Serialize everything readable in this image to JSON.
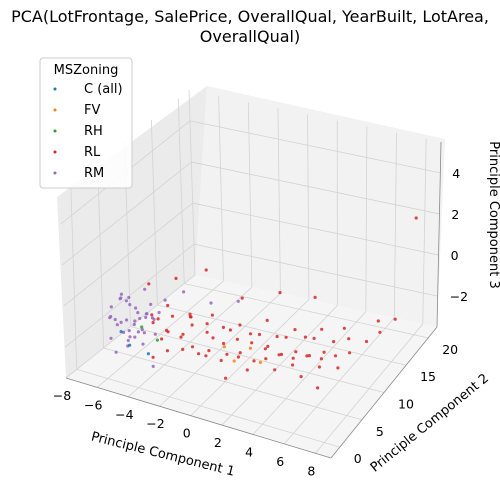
{
  "chart_data": {
    "type": "scatter",
    "projection": "3d",
    "title_lines": [
      "PCA(LotFrontage, SalePrice, OverallQual, YearBuilt, LotArea,",
      "OverallQual)"
    ],
    "xlabel": "Principle Component 1",
    "ylabel": "Principle Component 2",
    "zlabel": "Principle Component 3",
    "xlim": [
      -8,
      9
    ],
    "ylim": [
      -2,
      22
    ],
    "zlim": [
      -3.5,
      5.5
    ],
    "xticks": [
      -8,
      -6,
      -4,
      -2,
      0,
      2,
      4,
      6,
      8
    ],
    "yticks": [
      0,
      5,
      10,
      15,
      20
    ],
    "zticks": [
      -2,
      0,
      2,
      4
    ],
    "grid": true,
    "legend": {
      "title": "MSZoning",
      "placement": "top-left",
      "entries": [
        "C (all)",
        "FV",
        "RH",
        "RL",
        "RM"
      ]
    },
    "series": [
      {
        "name": "RM",
        "color": "#9467bd",
        "points": [
          [
            -5.8,
            2.2,
            -1.2
          ],
          [
            -5.2,
            1.5,
            -0.8
          ],
          [
            -4.9,
            2.8,
            -1.6
          ],
          [
            -5.5,
            0.6,
            -0.9
          ],
          [
            -4.6,
            1.9,
            -0.4
          ],
          [
            -6.1,
            1.1,
            -1.8
          ],
          [
            -5.0,
            3.4,
            -1.1
          ],
          [
            -4.3,
            2.5,
            -0.7
          ],
          [
            -5.7,
            3.0,
            -0.3
          ],
          [
            -4.8,
            0.9,
            -1.4
          ],
          [
            -6.4,
            2.0,
            -1.0
          ],
          [
            -5.3,
            2.3,
            0.1
          ],
          [
            -4.1,
            1.6,
            -1.2
          ],
          [
            -5.9,
            0.4,
            -0.6
          ],
          [
            -4.7,
            3.8,
            -0.9
          ],
          [
            -5.1,
            1.3,
            -2.0
          ],
          [
            -6.0,
            2.7,
            -0.2
          ],
          [
            -4.4,
            0.7,
            -0.5
          ],
          [
            -5.6,
            1.8,
            0.3
          ],
          [
            -4.9,
            2.1,
            -1.7
          ],
          [
            -3.9,
            2.9,
            -0.8
          ],
          [
            -5.4,
            3.5,
            -1.5
          ],
          [
            -6.2,
            1.6,
            -0.4
          ],
          [
            -4.5,
            1.2,
            0.0
          ],
          [
            -5.0,
            0.3,
            -1.1
          ],
          [
            -3.6,
            2.2,
            -1.3
          ],
          [
            -5.8,
            3.9,
            -0.7
          ],
          [
            -4.2,
            3.2,
            -0.2
          ],
          [
            -5.3,
            0.8,
            0.4
          ],
          [
            -4.0,
            1.0,
            -1.6
          ],
          [
            -6.5,
            3.1,
            -1.4
          ],
          [
            -3.8,
            3.6,
            -0.6
          ],
          [
            -5.5,
            2.6,
            -2.1
          ],
          [
            -4.6,
            0.2,
            -0.9
          ],
          [
            -3.5,
            1.4,
            -0.3
          ],
          [
            -4.8,
            4.2,
            -1.0
          ],
          [
            -2.6,
            1.2,
            0.8
          ],
          [
            -1.8,
            2.4,
            1.1
          ],
          [
            -0.4,
            3.5,
            0.6
          ],
          [
            1.2,
            4.0,
            0.9
          ],
          [
            -3.2,
            0.5,
            -2.4
          ],
          [
            -5.9,
            1.4,
            -2.5
          ],
          [
            -4.4,
            2.7,
            0.6
          ],
          [
            -5.2,
            4.4,
            -1.9
          ]
        ]
      },
      {
        "name": "RL",
        "color": "#d62728",
        "points": [
          [
            -4.0,
            3.0,
            -1.0
          ],
          [
            -3.5,
            2.5,
            -0.6
          ],
          [
            -3.1,
            3.2,
            -1.3
          ],
          [
            -2.8,
            2.0,
            -0.9
          ],
          [
            -2.4,
            3.6,
            -1.5
          ],
          [
            -2.0,
            2.8,
            -1.1
          ],
          [
            -1.6,
            3.4,
            -0.7
          ],
          [
            -1.2,
            2.2,
            -1.4
          ],
          [
            -0.8,
            3.9,
            -1.0
          ],
          [
            -0.4,
            3.0,
            -1.6
          ],
          [
            0.0,
            2.6,
            -0.8
          ],
          [
            0.4,
            3.5,
            -1.2
          ],
          [
            0.8,
            2.9,
            -1.5
          ],
          [
            1.2,
            3.8,
            -0.9
          ],
          [
            1.6,
            3.1,
            -1.3
          ],
          [
            2.0,
            4.2,
            -1.0
          ],
          [
            2.4,
            3.4,
            -1.6
          ],
          [
            2.8,
            4.5,
            -1.2
          ],
          [
            3.2,
            3.7,
            -0.8
          ],
          [
            3.6,
            4.8,
            -1.4
          ],
          [
            4.0,
            4.0,
            -1.1
          ],
          [
            4.4,
            5.2,
            -1.5
          ],
          [
            4.8,
            4.4,
            -0.9
          ],
          [
            5.2,
            5.5,
            -1.3
          ],
          [
            5.6,
            4.7,
            -1.0
          ],
          [
            6.0,
            6.0,
            -1.4
          ],
          [
            6.4,
            5.2,
            -0.8
          ],
          [
            6.8,
            6.4,
            -1.2
          ],
          [
            7.2,
            5.6,
            -1.5
          ],
          [
            7.6,
            6.8,
            -1.0
          ],
          [
            -3.8,
            2.2,
            -0.4
          ],
          [
            -3.3,
            3.8,
            -0.2
          ],
          [
            -2.6,
            2.6,
            -0.3
          ],
          [
            -1.9,
            4.0,
            -0.5
          ],
          [
            -1.4,
            2.4,
            0.1
          ],
          [
            -0.6,
            3.3,
            -0.4
          ],
          [
            0.2,
            4.1,
            -0.6
          ],
          [
            1.0,
            3.0,
            -0.3
          ],
          [
            1.8,
            4.6,
            -0.7
          ],
          [
            2.6,
            3.9,
            -0.4
          ],
          [
            3.4,
            5.0,
            -0.6
          ],
          [
            4.2,
            4.3,
            -0.3
          ],
          [
            5.0,
            5.8,
            -0.5
          ],
          [
            5.8,
            5.0,
            -0.2
          ],
          [
            6.6,
            6.6,
            -0.6
          ],
          [
            -3.6,
            3.4,
            -1.8
          ],
          [
            -2.9,
            2.4,
            -2.0
          ],
          [
            -2.1,
            3.0,
            -1.9
          ],
          [
            -1.3,
            3.7,
            -2.1
          ],
          [
            -0.5,
            2.7,
            -1.8
          ],
          [
            0.3,
            3.3,
            -2.0
          ],
          [
            1.1,
            4.3,
            -1.9
          ],
          [
            1.9,
            3.6,
            -2.2
          ],
          [
            2.7,
            4.9,
            -1.8
          ],
          [
            3.5,
            4.2,
            -2.0
          ],
          [
            4.3,
            5.4,
            -1.9
          ],
          [
            5.1,
            4.6,
            -2.1
          ],
          [
            5.9,
            5.9,
            -1.8
          ],
          [
            -2.2,
            5.0,
            -0.8
          ],
          [
            -1.0,
            5.6,
            -0.6
          ],
          [
            0.6,
            6.2,
            -0.9
          ],
          [
            2.2,
            6.8,
            -0.5
          ],
          [
            3.8,
            7.5,
            -0.8
          ],
          [
            5.4,
            8.0,
            -0.6
          ],
          [
            7.0,
            8.6,
            -0.9
          ],
          [
            8.0,
            9.2,
            -1.0
          ],
          [
            8.5,
            10.5,
            -0.8
          ],
          [
            6.0,
            11.0,
            -1.2
          ],
          [
            4.5,
            9.5,
            0.4
          ],
          [
            7.8,
            12.5,
            -0.9
          ],
          [
            8.2,
            15.0,
            -1.4
          ],
          [
            8.6,
            18.0,
            2.8
          ],
          [
            -4.5,
            3.8,
            0.6
          ],
          [
            -3.0,
            4.6,
            1.0
          ],
          [
            -1.5,
            6.0,
            1.4
          ],
          [
            0.5,
            7.0,
            0.2
          ],
          [
            2.5,
            8.5,
            0.5
          ],
          [
            -3.7,
            2.0,
            -2.4
          ],
          [
            0.9,
            2.3,
            -2.5
          ],
          [
            6.3,
            4.2,
            -2.3
          ]
        ]
      },
      {
        "name": "C (all)",
        "color": "#1f77b4",
        "points": [
          [
            -5.4,
            1.0,
            -1.3
          ],
          [
            -4.7,
            0.5,
            -1.7
          ],
          [
            -3.9,
            1.7,
            -2.2
          ]
        ]
      },
      {
        "name": "FV",
        "color": "#ff7f0e",
        "points": [
          [
            0.6,
            3.0,
            -1.2
          ],
          [
            1.4,
            2.5,
            -1.6
          ],
          [
            2.2,
            3.3,
            -1.0
          ],
          [
            3.0,
            2.8,
            -1.4
          ]
        ]
      },
      {
        "name": "RH",
        "color": "#2ca02c",
        "points": [
          [
            -4.2,
            1.4,
            -0.9
          ],
          [
            -3.4,
            2.0,
            -1.5
          ]
        ]
      }
    ]
  }
}
